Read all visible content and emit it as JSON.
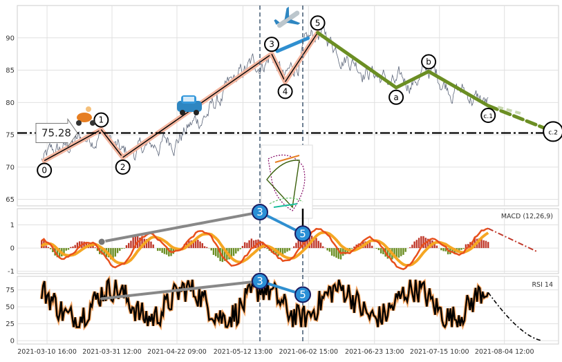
{
  "chart_data": {
    "type": "line",
    "x_tick_labels": [
      "2021-03-10 16:00",
      "2021-03-31 12:00",
      "2021-04-22 09:00",
      "2021-05-12 13:00",
      "2021-06-02 15:00",
      "2021-06-23 13:00",
      "2021-07-15 10:00",
      "2021-08-04 12:00"
    ],
    "price_panel": {
      "ylim": [
        64,
        95
      ],
      "y_ticks": [
        65,
        70,
        75,
        80,
        85,
        90
      ],
      "reference_line": {
        "value": 75.28,
        "label": "75.28"
      },
      "wave_points": [
        {
          "label": "0",
          "x": 0.05,
          "y": 71.0
        },
        {
          "label": "1",
          "x": 0.155,
          "y": 75.8
        },
        {
          "label": "2",
          "x": 0.195,
          "y": 71.5
        },
        {
          "label": "3",
          "x": 0.47,
          "y": 87.5
        },
        {
          "label": "4",
          "x": 0.495,
          "y": 83.2
        },
        {
          "label": "5",
          "x": 0.555,
          "y": 90.8
        },
        {
          "label": "a",
          "x": 0.7,
          "y": 82.3
        },
        {
          "label": "b",
          "x": 0.76,
          "y": 84.8
        },
        {
          "label": "c.1",
          "x": 0.87,
          "y": 79.5
        },
        {
          "label": "c.2",
          "x": 0.99,
          "y": 75.5
        }
      ],
      "impulse_labels": [
        "0",
        "1",
        "2",
        "3",
        "4",
        "5"
      ],
      "correction_labels": [
        "a",
        "b",
        "c.1",
        "c.2"
      ],
      "colors": {
        "price": "#5a6478",
        "impulse": "#f4b6a0",
        "correction": "#6b8e23",
        "wave3_4": "#2f8fd0",
        "ref_line": "#000000"
      },
      "icons": [
        "scooter-icon",
        "car-icon",
        "airplane-icon"
      ]
    },
    "macd_panel": {
      "title": "MACD (12,26,9)",
      "ylim": [
        -1.1,
        1.7
      ],
      "y_ticks": [
        -1,
        0,
        1
      ],
      "colors": {
        "macd": "#e8501c",
        "signal": "#f5a623",
        "hist_pos": "#c0392b",
        "hist_neg": "#6b8e23"
      }
    },
    "rsi_panel": {
      "title": "RSI 14",
      "ylim": [
        -5,
        95
      ],
      "y_ticks": [
        0,
        25,
        50,
        75
      ],
      "colors": {
        "rsi": "#000000",
        "rsi_glow": "#f4a460"
      }
    },
    "markers": [
      {
        "label": "3",
        "panel": "macd"
      },
      {
        "label": "5",
        "panel": "macd"
      },
      {
        "label": "3",
        "panel": "rsi"
      },
      {
        "label": "5",
        "panel": "rsi"
      }
    ],
    "vertical_lines_at_waves": [
      "3",
      "5"
    ],
    "grid": true
  }
}
